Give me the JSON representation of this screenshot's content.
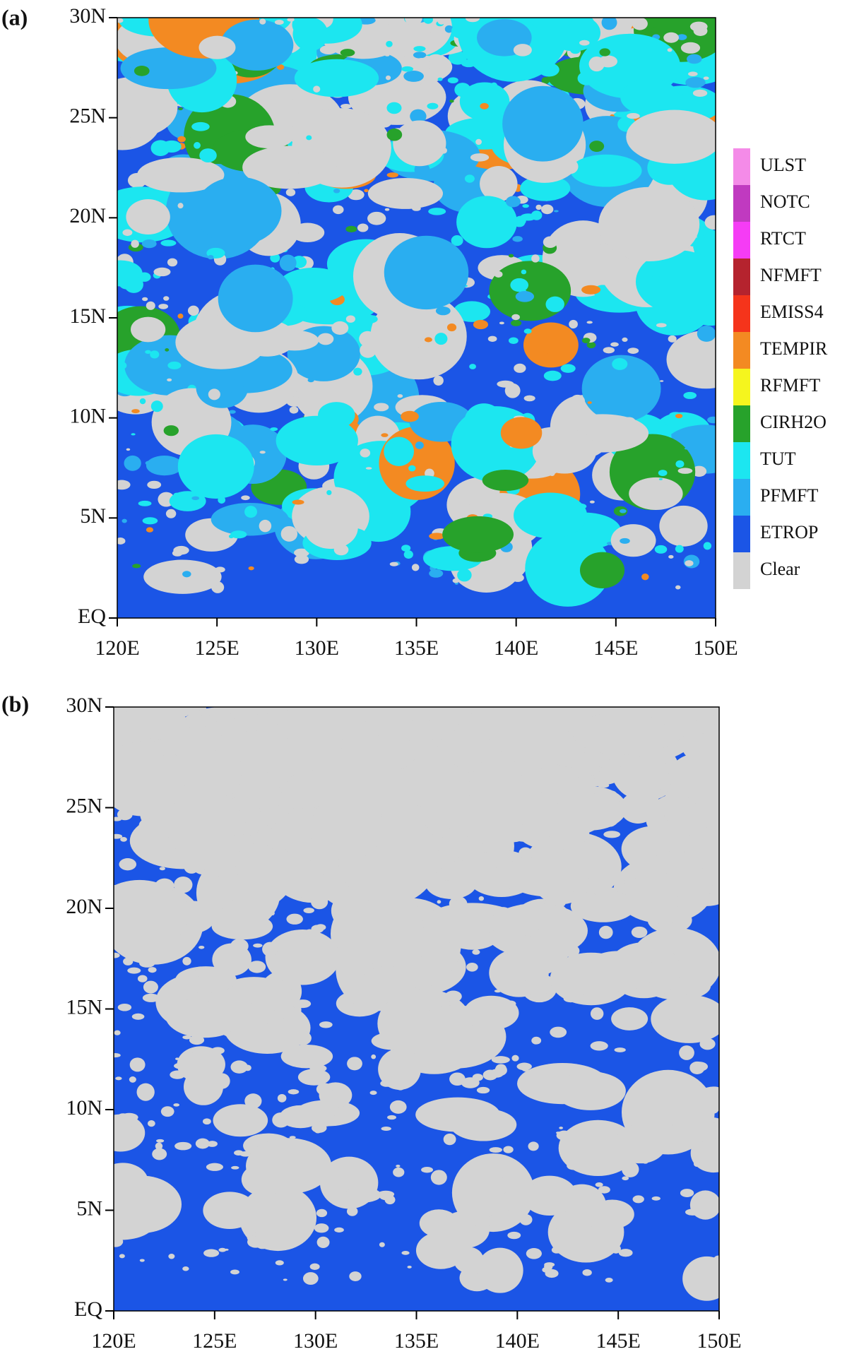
{
  "chart_data": [
    {
      "type": "map",
      "panel_label": "(a)",
      "xlim": [
        120,
        150
      ],
      "ylim": [
        0,
        30
      ],
      "xticks": [
        {
          "value": 120,
          "label": "120E"
        },
        {
          "value": 125,
          "label": "125E"
        },
        {
          "value": 130,
          "label": "130E"
        },
        {
          "value": 135,
          "label": "135E"
        },
        {
          "value": 140,
          "label": "140E"
        },
        {
          "value": 145,
          "label": "145E"
        },
        {
          "value": 150,
          "label": "150E"
        }
      ],
      "yticks": [
        {
          "value": 0,
          "label": "EQ"
        },
        {
          "value": 5,
          "label": "5N"
        },
        {
          "value": 10,
          "label": "10N"
        },
        {
          "value": 15,
          "label": "15N"
        },
        {
          "value": 20,
          "label": "20N"
        },
        {
          "value": 25,
          "label": "25N"
        },
        {
          "value": 30,
          "label": "30N"
        }
      ],
      "legend": [
        {
          "name": "ULST",
          "color": "#f48be8"
        },
        {
          "name": "NOTC",
          "color": "#c03ac0"
        },
        {
          "name": "RTCT",
          "color": "#f53cf5"
        },
        {
          "name": "NFMFT",
          "color": "#b5232e"
        },
        {
          "name": "EMISS4",
          "color": "#f5341b"
        },
        {
          "name": "TEMPIR",
          "color": "#f38a22"
        },
        {
          "name": "RFMFT",
          "color": "#f5f51e"
        },
        {
          "name": "CIRH2O",
          "color": "#27a22b"
        },
        {
          "name": "TUT",
          "color": "#1ce6f0"
        },
        {
          "name": "PFMFT",
          "color": "#2aaef0"
        },
        {
          "name": "ETROP",
          "color": "#1b55e6"
        },
        {
          "name": "Clear",
          "color": "#d3d3d3"
        }
      ]
    },
    {
      "type": "map",
      "panel_label": "(b)",
      "xlim": [
        120,
        150
      ],
      "ylim": [
        0,
        30
      ],
      "xticks": [
        {
          "value": 120,
          "label": "120E"
        },
        {
          "value": 125,
          "label": "125E"
        },
        {
          "value": 130,
          "label": "130E"
        },
        {
          "value": 135,
          "label": "135E"
        },
        {
          "value": 140,
          "label": "140E"
        },
        {
          "value": 145,
          "label": "145E"
        },
        {
          "value": 150,
          "label": "150E"
        }
      ],
      "yticks": [
        {
          "value": 0,
          "label": "EQ"
        },
        {
          "value": 5,
          "label": "5N"
        },
        {
          "value": 10,
          "label": "10N"
        },
        {
          "value": 15,
          "label": "15N"
        },
        {
          "value": 20,
          "label": "20N"
        },
        {
          "value": 25,
          "label": "25N"
        },
        {
          "value": 30,
          "label": "30N"
        }
      ]
    }
  ]
}
